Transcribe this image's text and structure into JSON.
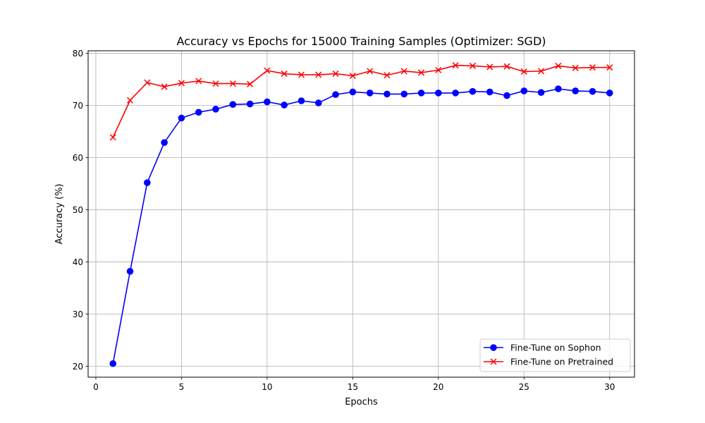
{
  "chart_data": {
    "type": "line",
    "title": "Accuracy vs Epochs for 15000 Training Samples (Optimizer: SGD)",
    "xlabel": "Epochs",
    "ylabel": "Accuracy (%)",
    "xlim": [
      -0.45,
      31.45
    ],
    "ylim": [
      17.9,
      80.5
    ],
    "xticks": [
      0,
      5,
      10,
      15,
      20,
      25,
      30
    ],
    "yticks": [
      20,
      30,
      40,
      50,
      60,
      70,
      80
    ],
    "grid": true,
    "legend_position": "lower-right",
    "x": [
      1,
      2,
      3,
      4,
      5,
      6,
      7,
      8,
      9,
      10,
      11,
      12,
      13,
      14,
      15,
      16,
      17,
      18,
      19,
      20,
      21,
      22,
      23,
      24,
      25,
      26,
      27,
      28,
      29,
      30
    ],
    "series": [
      {
        "name": "Fine-Tune on Sophon",
        "color": "#0000ff",
        "marker": "circle",
        "values": [
          20.5,
          38.2,
          55.2,
          62.9,
          67.6,
          68.7,
          69.3,
          70.2,
          70.3,
          70.7,
          70.1,
          70.9,
          70.5,
          72.1,
          72.6,
          72.4,
          72.2,
          72.2,
          72.4,
          72.4,
          72.4,
          72.7,
          72.6,
          71.9,
          72.8,
          72.5,
          73.2,
          72.8,
          72.7,
          72.4
        ]
      },
      {
        "name": "Fine-Tune on Pretrained",
        "color": "#ff0000",
        "marker": "x",
        "values": [
          63.9,
          71.0,
          74.4,
          73.6,
          74.3,
          74.7,
          74.2,
          74.2,
          74.1,
          76.7,
          76.1,
          75.9,
          75.9,
          76.1,
          75.7,
          76.6,
          75.8,
          76.6,
          76.3,
          76.8,
          77.7,
          77.6,
          77.4,
          77.5,
          76.5,
          76.6,
          77.6,
          77.2,
          77.3,
          77.3
        ]
      }
    ]
  }
}
